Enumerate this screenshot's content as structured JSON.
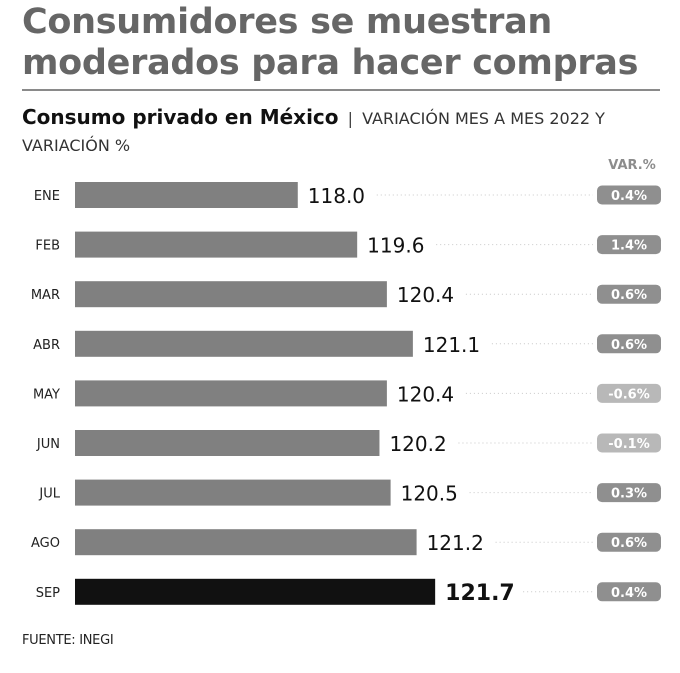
{
  "headline": "Consumidores se muestran moderados para hacer compras",
  "subtitle": {
    "strong": "Consumo privado en México",
    "separator": "|",
    "rest": "VARIACIÓN MES A MES 2022 Y VARIACIÓN %"
  },
  "var_header": "VAR.%",
  "source": "FUENTE: INEGI",
  "colors": {
    "bar": "#808080",
    "bar_highlight": "#111111",
    "badge": "#8f8f8f",
    "badge_negative": "#b8b8b8",
    "dotted_line": "#c8c8c8"
  },
  "chart_data": {
    "type": "bar",
    "orientation": "horizontal",
    "title": "Consumo privado en México",
    "categories": [
      "ENE",
      "FEB",
      "MAR",
      "ABR",
      "MAY",
      "JUN",
      "JUL",
      "AGO",
      "SEP"
    ],
    "values": [
      118.0,
      119.6,
      120.4,
      121.1,
      120.4,
      120.2,
      120.5,
      121.2,
      121.7
    ],
    "value_labels": [
      "118.0",
      "119.6",
      "120.4",
      "121.1",
      "120.4",
      "120.2",
      "120.5",
      "121.2",
      "121.7"
    ],
    "var_pct": [
      0.4,
      1.4,
      0.6,
      0.6,
      -0.6,
      -0.1,
      0.3,
      0.6,
      0.4
    ],
    "var_labels": [
      "0.4%",
      "1.4%",
      "0.6%",
      "0.6%",
      "-0.6%",
      "-0.1%",
      "0.3%",
      "0.6%",
      "0.4%"
    ],
    "highlight_index": 8,
    "xlim": [
      112.0,
      122.8
    ]
  }
}
